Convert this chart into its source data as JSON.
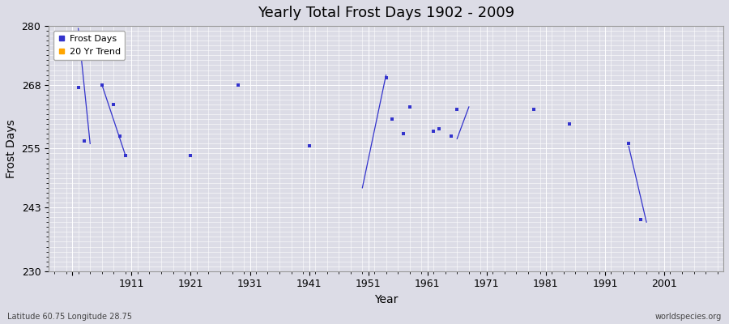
{
  "title": "Yearly Total Frost Days 1902 - 2009",
  "xlabel": "Year",
  "ylabel": "Frost Days",
  "ylim": [
    230,
    280
  ],
  "xlim": [
    1897,
    2011
  ],
  "yticks": [
    230,
    243,
    255,
    268,
    280
  ],
  "xticks": [
    1901,
    1911,
    1921,
    1931,
    1941,
    1951,
    1961,
    1971,
    1981,
    1991,
    2001
  ],
  "xticklabels": [
    "",
    "1911",
    "1921",
    "1931",
    "1941",
    "1951",
    "1961",
    "1971",
    "1981",
    "1991",
    "2001"
  ],
  "background_color": "#dcdce6",
  "plot_bg_color": "#dcdce6",
  "grid_color": "#ffffff",
  "dot_color": "#3333cc",
  "trend_color": "#3333cc",
  "scatter_points": [
    [
      1902,
      267.5
    ],
    [
      1903,
      256.5
    ],
    [
      1906,
      268.0
    ],
    [
      1908,
      264.0
    ],
    [
      1909,
      257.5
    ],
    [
      1910,
      253.5
    ],
    [
      1921,
      253.5
    ],
    [
      1929,
      268.0
    ],
    [
      1941,
      255.5
    ],
    [
      1954,
      269.5
    ],
    [
      1955,
      261.0
    ],
    [
      1957,
      258.0
    ],
    [
      1958,
      263.5
    ],
    [
      1962,
      258.5
    ],
    [
      1963,
      259.0
    ],
    [
      1965,
      257.5
    ],
    [
      1966,
      263.0
    ],
    [
      1979,
      263.0
    ],
    [
      1985,
      260.0
    ],
    [
      1995,
      256.0
    ],
    [
      1997,
      240.5
    ]
  ],
  "trend_segments": [
    [
      [
        1902,
        279.5
      ],
      [
        1904,
        256.0
      ]
    ],
    [
      [
        1906,
        268.0
      ],
      [
        1910,
        253.5
      ]
    ],
    [
      [
        1950,
        247.0
      ],
      [
        1954,
        270.0
      ]
    ],
    [
      [
        1966,
        257.0
      ],
      [
        1968,
        263.5
      ]
    ],
    [
      [
        1995,
        255.5
      ],
      [
        1998,
        240.0
      ]
    ]
  ],
  "footnote_left": "Latitude 60.75 Longitude 28.75",
  "footnote_right": "worldspecies.org",
  "legend_dot_color": "#3333cc",
  "legend_trend_color": "#ffa500",
  "fig_width": 9.0,
  "fig_height": 4.0
}
